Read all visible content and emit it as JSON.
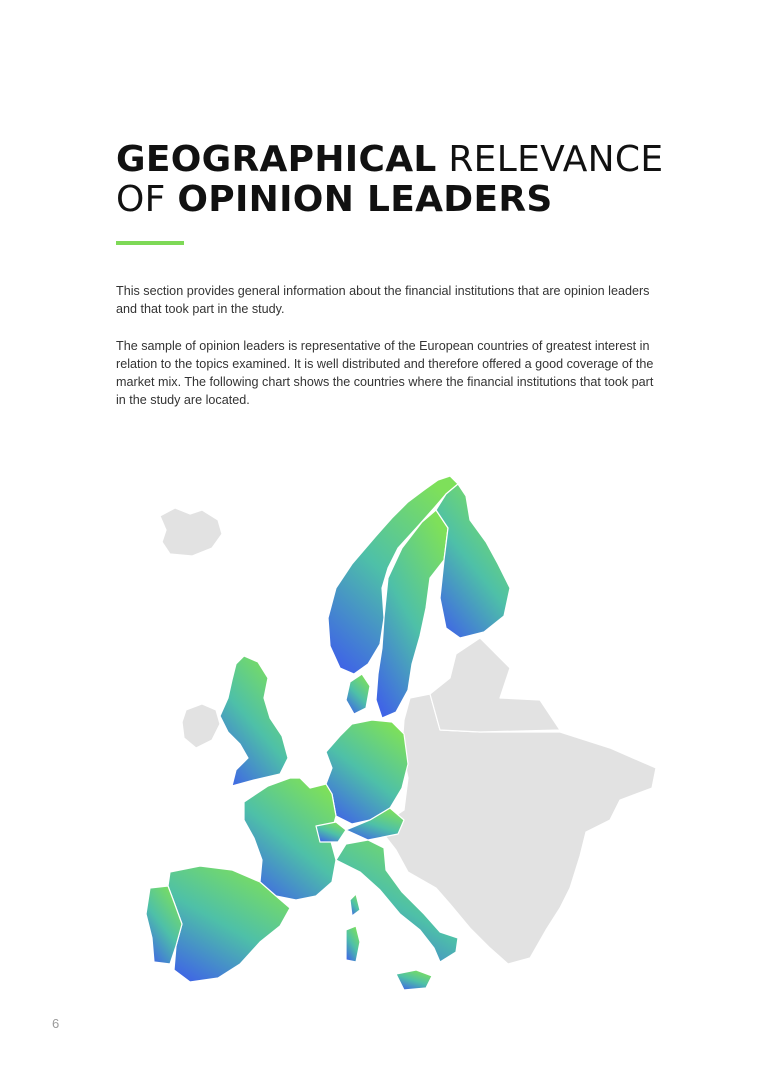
{
  "title": {
    "part1": "GEOGRAPHICAL",
    "part2": " RELEVANCE",
    "part3": "OF ",
    "part4": "OPINION LEADERS"
  },
  "paragraphs": [
    "This section provides general information about the financial institutions that are opinion leaders and that took part in the study.",
    "The sample of opinion leaders is representative of the European countries of greatest interest in relation to the topics examined. It is well distributed and therefore offered a good coverage of the market mix. The following chart shows the countries where the financial institutions that took part in the study are located."
  ],
  "map": {
    "highlighted_countries": [
      "norway",
      "sweden",
      "finland",
      "united-kingdom",
      "denmark",
      "netherlands",
      "belgium",
      "germany",
      "france",
      "switzerland",
      "austria",
      "italy",
      "spain",
      "portugal"
    ],
    "gradient_colors": {
      "top": "#7ee05a",
      "mid": "#4ec0a8",
      "bottom": "#3f64e6"
    },
    "other_color": "#e2e2e2",
    "accent_color": "#7ed957"
  },
  "page_number": "6"
}
